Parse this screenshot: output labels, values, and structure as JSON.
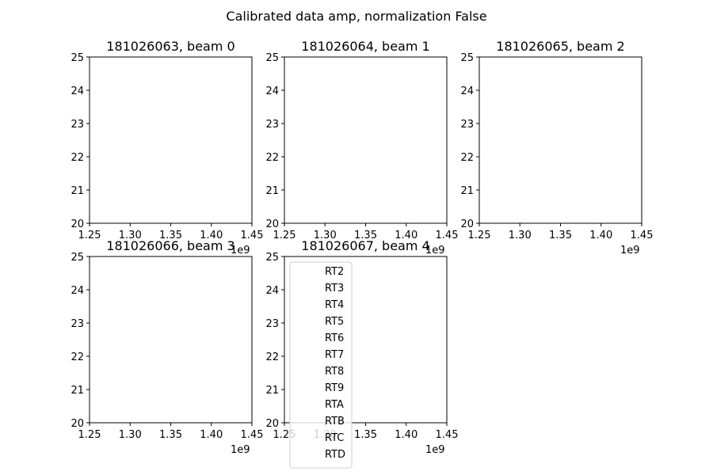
{
  "figure": {
    "suptitle": "Calibrated data amp, normalization False"
  },
  "chart_data": [
    {
      "type": "line",
      "title": "181026063, beam 0",
      "xlabel": "",
      "ylabel": "",
      "xlim": [
        1.25,
        1.45
      ],
      "ylim": [
        20,
        25
      ],
      "x_ticks": [
        "1.25",
        "1.30",
        "1.35",
        "1.40",
        "1.45"
      ],
      "y_ticks": [
        "20",
        "21",
        "22",
        "23",
        "24",
        "25"
      ],
      "x_offset_text": "1e9",
      "series": []
    },
    {
      "type": "line",
      "title": "181026064, beam 1",
      "xlabel": "",
      "ylabel": "",
      "xlim": [
        1.25,
        1.45
      ],
      "ylim": [
        20,
        25
      ],
      "x_ticks": [
        "1.25",
        "1.30",
        "1.35",
        "1.40",
        "1.45"
      ],
      "y_ticks": [
        "20",
        "21",
        "22",
        "23",
        "24",
        "25"
      ],
      "x_offset_text": "1e9",
      "series": []
    },
    {
      "type": "line",
      "title": "181026065, beam 2",
      "xlabel": "",
      "ylabel": "",
      "xlim": [
        1.25,
        1.45
      ],
      "ylim": [
        20,
        25
      ],
      "x_ticks": [
        "1.25",
        "1.30",
        "1.35",
        "1.40",
        "1.45"
      ],
      "y_ticks": [
        "20",
        "21",
        "22",
        "23",
        "24",
        "25"
      ],
      "x_offset_text": "1e9",
      "series": []
    },
    {
      "type": "line",
      "title": "181026066, beam 3",
      "xlabel": "",
      "ylabel": "",
      "xlim": [
        1.25,
        1.45
      ],
      "ylim": [
        20,
        25
      ],
      "x_ticks": [
        "1.25",
        "1.30",
        "1.35",
        "1.40",
        "1.45"
      ],
      "y_ticks": [
        "20",
        "21",
        "22",
        "23",
        "24",
        "25"
      ],
      "x_offset_text": "1e9",
      "series": []
    },
    {
      "type": "line",
      "title": "181026067, beam 4",
      "xlabel": "",
      "ylabel": "",
      "xlim": [
        1.25,
        1.45
      ],
      "ylim": [
        20,
        25
      ],
      "x_ticks": [
        "1.25",
        "1.30",
        "1.35",
        "1.40",
        "1.45"
      ],
      "y_ticks": [
        "20",
        "21",
        "22",
        "23",
        "24",
        "25"
      ],
      "x_offset_text": "1e9",
      "series": [],
      "legend": {
        "placement": "lower-left",
        "entries": [
          "RT2",
          "RT3",
          "RT4",
          "RT5",
          "RT6",
          "RT7",
          "RT8",
          "RT9",
          "RTA",
          "RTB",
          "RTC",
          "RTD"
        ]
      }
    }
  ]
}
